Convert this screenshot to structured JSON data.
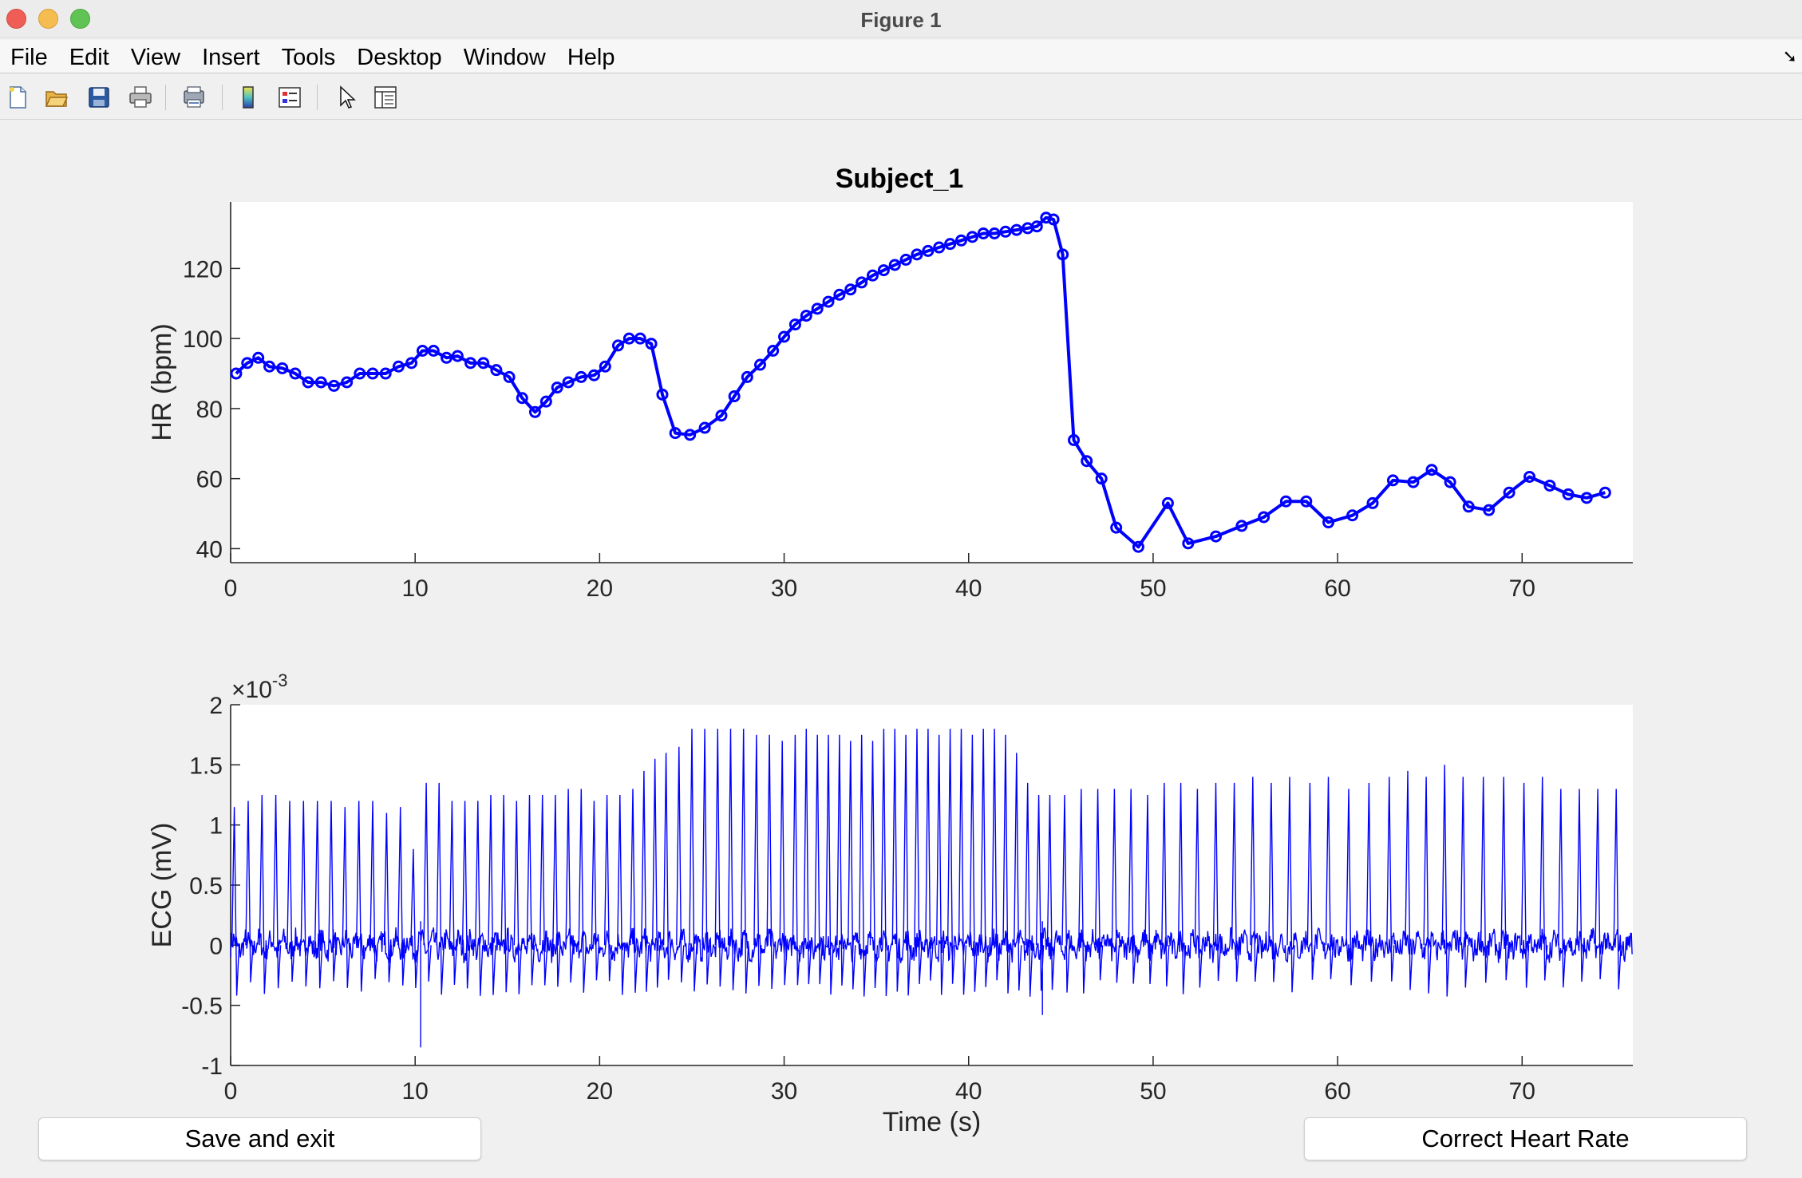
{
  "window": {
    "title": "Figure 1"
  },
  "menu": {
    "items": [
      "File",
      "Edit",
      "View",
      "Insert",
      "Tools",
      "Desktop",
      "Window",
      "Help"
    ]
  },
  "toolbar": {
    "icons": [
      "new-figure-icon",
      "open-file-icon",
      "save-icon",
      "print-icon",
      "print-preview-icon",
      "colorbar-icon",
      "legend-icon",
      "pointer-icon",
      "property-inspector-icon"
    ]
  },
  "buttons": {
    "save_exit": "Save and exit",
    "correct_hr": "Correct Heart Rate"
  },
  "colors": {
    "line": "#0000ff",
    "figure_bg": "#f0f0f0",
    "axes_bg": "#ffffff"
  },
  "chart_data": [
    {
      "type": "line",
      "title": "Subject_1",
      "xlabel": "",
      "ylabel": "HR (bpm)",
      "xlim": [
        0,
        76
      ],
      "ylim": [
        36,
        139
      ],
      "xticks": [
        0,
        10,
        20,
        30,
        40,
        50,
        60,
        70
      ],
      "yticks": [
        40,
        60,
        80,
        100,
        120
      ],
      "marker": "circle",
      "series": [
        {
          "x": [
            0.3,
            0.9,
            1.5,
            2.1,
            2.8,
            3.5,
            4.2,
            4.9,
            5.6,
            6.3,
            7.0,
            7.7,
            8.4,
            9.1,
            9.8,
            10.4,
            11.0,
            11.7,
            12.3,
            13.0,
            13.7,
            14.4,
            15.1,
            15.8,
            16.5,
            17.1,
            17.7,
            18.3,
            19.0,
            19.7,
            20.3,
            21.0,
            21.6,
            22.2,
            22.8,
            23.4,
            24.1,
            24.9,
            25.7,
            26.6,
            27.3,
            28.0,
            28.7,
            29.4,
            30.0,
            30.6,
            31.2,
            31.8,
            32.4,
            33.0,
            33.6,
            34.2,
            34.8,
            35.4,
            36.0,
            36.6,
            37.2,
            37.8,
            38.4,
            39.0,
            39.6,
            40.2,
            40.8,
            41.4,
            42.0,
            42.6,
            43.2,
            43.7,
            44.2,
            44.6,
            45.1,
            45.7,
            46.4,
            47.2,
            48.0,
            49.2,
            50.8,
            51.9,
            53.4,
            54.8,
            56.0,
            57.2,
            58.3,
            59.5,
            60.8,
            61.9,
            63.0,
            64.1,
            65.1,
            66.1,
            67.1,
            68.2,
            69.3,
            70.4,
            71.5,
            72.5,
            73.5,
            74.5
          ],
          "y": [
            90,
            93,
            94.5,
            92,
            91.5,
            90,
            87.5,
            87.5,
            86.5,
            87.5,
            90,
            90,
            90,
            92,
            93,
            96.5,
            96.5,
            94.5,
            95,
            93,
            93,
            91,
            89,
            83,
            79,
            82,
            86,
            87.5,
            89,
            89.5,
            92,
            98,
            100,
            100,
            98.5,
            84,
            73,
            72.5,
            74.5,
            78,
            83.5,
            89,
            92.5,
            96.5,
            100.5,
            104,
            106.5,
            108.5,
            110.5,
            112.5,
            114,
            116,
            118,
            119.5,
            121,
            122.5,
            124,
            125,
            126,
            127,
            128,
            129,
            130,
            130,
            130.5,
            131,
            131.5,
            132,
            134.5,
            134,
            124,
            71,
            65,
            60,
            46,
            40.5,
            53,
            41.5,
            43.5,
            46.5,
            49,
            53.5,
            53.5,
            47.5,
            49.5,
            53,
            59.5,
            59,
            62.5,
            59,
            52,
            51,
            56,
            60.5,
            58,
            55.5,
            54.5,
            56
          ]
        }
      ]
    },
    {
      "type": "line",
      "title": "",
      "xlabel": "Time (s)",
      "ylabel": "ECG (mV)",
      "exponent_label": "×10",
      "exponent_power": "-3",
      "xlim": [
        0,
        76
      ],
      "ylim": [
        -1,
        2
      ],
      "xticks": [
        0,
        10,
        20,
        30,
        40,
        50,
        60,
        70
      ],
      "yticks": [
        2,
        1.5,
        1,
        0.5,
        0,
        -0.5,
        -1
      ],
      "ytick_labels": [
        "2",
        "1.5",
        "1",
        "0.5",
        "0",
        "-0.5",
        "-1"
      ],
      "series": [
        {
          "r_peak_times": [
            0.2,
            0.95,
            1.7,
            2.45,
            3.2,
            3.95,
            4.7,
            5.45,
            6.2,
            6.95,
            7.7,
            8.45,
            9.2,
            9.9,
            10.6,
            11.3,
            12.0,
            12.7,
            13.4,
            14.1,
            14.8,
            15.5,
            16.2,
            16.9,
            17.6,
            18.3,
            19.0,
            19.7,
            20.4,
            21.1,
            21.8,
            22.4,
            23.0,
            23.6,
            24.3,
            25.0,
            25.7,
            26.4,
            27.1,
            27.8,
            28.5,
            29.2,
            29.9,
            30.6,
            31.2,
            31.8,
            32.4,
            33.0,
            33.6,
            34.2,
            34.8,
            35.4,
            36.0,
            36.6,
            37.2,
            37.8,
            38.4,
            39.0,
            39.6,
            40.2,
            40.8,
            41.4,
            42.0,
            42.6,
            43.2,
            43.8,
            44.4,
            45.2,
            46.1,
            47.0,
            47.9,
            48.8,
            49.7,
            50.6,
            51.5,
            52.4,
            53.4,
            54.4,
            55.4,
            56.4,
            57.4,
            58.5,
            59.5,
            60.6,
            61.7,
            62.8,
            63.8,
            64.8,
            65.8,
            66.8,
            67.9,
            69.0,
            70.1,
            71.1,
            72.1,
            73.1,
            74.1,
            75.1
          ],
          "r_peak_amplitudes": [
            1.15,
            1.2,
            1.25,
            1.25,
            1.2,
            1.2,
            1.2,
            1.2,
            1.15,
            1.2,
            1.2,
            1.1,
            1.15,
            0.8,
            1.35,
            1.35,
            1.2,
            1.2,
            1.2,
            1.25,
            1.25,
            1.2,
            1.25,
            1.25,
            1.25,
            1.3,
            1.3,
            1.2,
            1.25,
            1.25,
            1.3,
            1.45,
            1.55,
            1.6,
            1.65,
            1.8,
            1.8,
            1.8,
            1.8,
            1.8,
            1.75,
            1.75,
            1.7,
            1.75,
            1.8,
            1.75,
            1.75,
            1.75,
            1.7,
            1.75,
            1.7,
            1.8,
            1.8,
            1.75,
            1.8,
            1.8,
            1.75,
            1.8,
            1.8,
            1.75,
            1.8,
            1.8,
            1.75,
            1.6,
            1.35,
            1.25,
            1.25,
            1.25,
            1.3,
            1.3,
            1.3,
            1.3,
            1.25,
            1.35,
            1.35,
            1.3,
            1.35,
            1.35,
            1.4,
            1.35,
            1.4,
            1.35,
            1.4,
            1.3,
            1.35,
            1.4,
            1.45,
            1.4,
            1.5,
            1.4,
            1.4,
            1.4,
            1.35,
            1.4,
            1.3,
            1.3,
            1.3,
            1.3
          ],
          "s_troughs": [
            {
              "t": 10.3,
              "v": -0.85
            },
            {
              "t": 44.0,
              "v": -0.58
            }
          ]
        }
      ]
    }
  ]
}
